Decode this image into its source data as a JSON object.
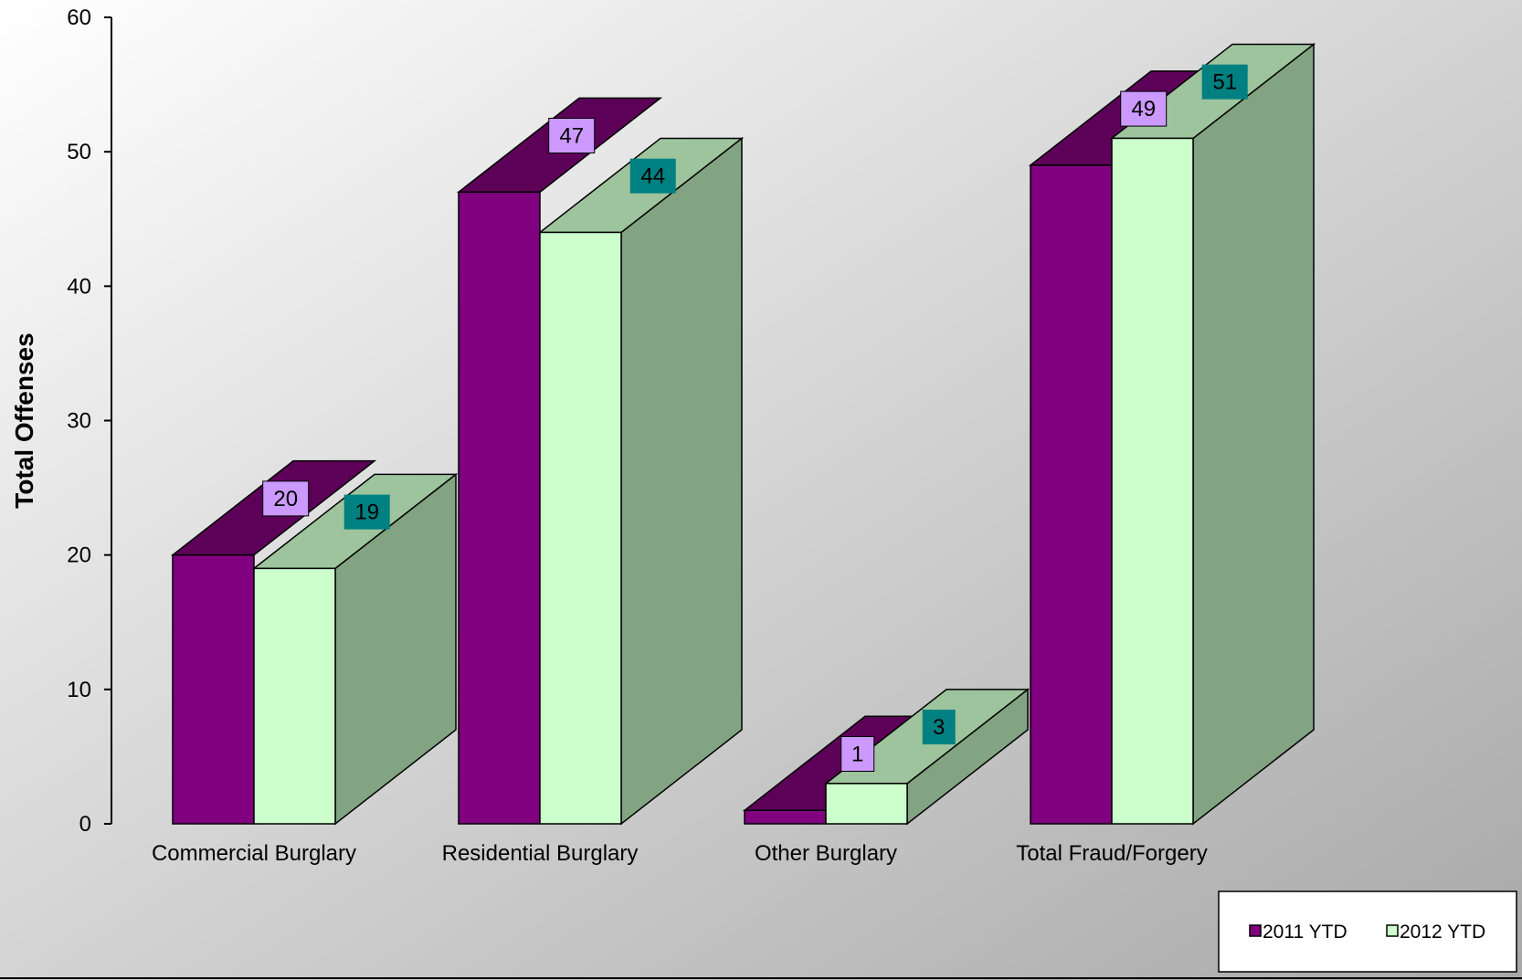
{
  "chart_data": {
    "type": "bar",
    "categories": [
      "Commercial Burglary",
      "Residential Burglary",
      "Other Burglary",
      "Total Fraud/Forgery"
    ],
    "series": [
      {
        "name": "2011 YTD",
        "values": [
          20,
          47,
          1,
          49
        ],
        "color": "#800080",
        "top_color": "#5C0058",
        "label_bg": "#CC99FF"
      },
      {
        "name": "2012 YTD",
        "values": [
          19,
          44,
          3,
          51
        ],
        "color": "#CCFFCC",
        "top_color": "#9DC49D",
        "side_color": "#82A482",
        "label_bg": "#008080"
      }
    ],
    "ylabel": "Total Offenses",
    "xlabel": "",
    "title": "",
    "ylim": [
      0,
      60
    ],
    "yticks": [
      0,
      10,
      20,
      30,
      40,
      50,
      60
    ],
    "grid": false,
    "legend_position": "bottom-right",
    "background": [
      "#ffffff",
      "#a8a8a8"
    ]
  }
}
